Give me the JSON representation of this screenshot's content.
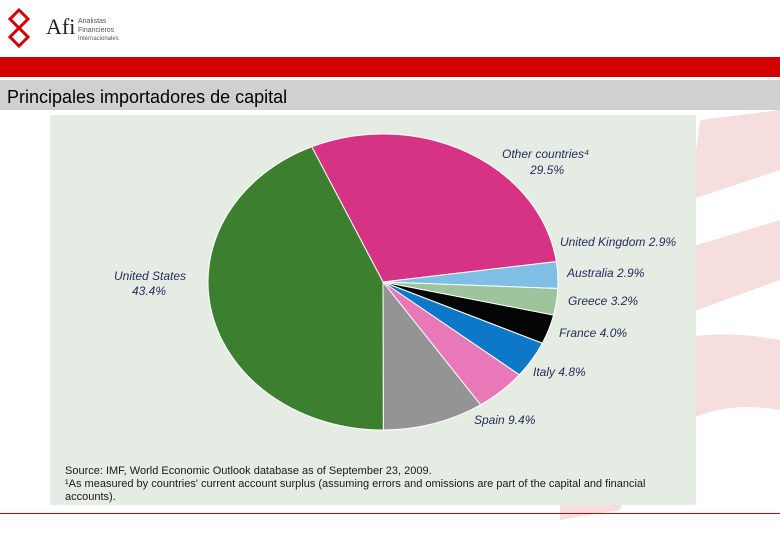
{
  "header": {
    "logo_text": "Afi",
    "logo_sub_1": "Analistas",
    "logo_sub_2": "Financieros",
    "logo_sub_3": "Internacionales"
  },
  "page": {
    "title": "Principales importadores de capital"
  },
  "colors": {
    "brand_red": "#d40000",
    "panel_bg": "#e4ece4"
  },
  "chart_data": {
    "type": "pie",
    "slices": [
      {
        "label": "Other countries⁴",
        "value": 29.5,
        "display": "29.5%",
        "color": "#d63384"
      },
      {
        "label": "United Kingdom",
        "value": 2.9,
        "display": "2.9%",
        "color": "#7fbfe6"
      },
      {
        "label": "Australia",
        "value": 2.9,
        "display": "2.9%",
        "color": "#9dc49d"
      },
      {
        "label": "Greece",
        "value": 3.2,
        "display": "3.2%",
        "color": "#050505"
      },
      {
        "label": "France",
        "value": 4.0,
        "display": "4.0%",
        "color": "#0e78c8"
      },
      {
        "label": "Italy",
        "value": 4.8,
        "display": "4.8%",
        "color": "#e878b8"
      },
      {
        "label": "Spain",
        "value": 9.4,
        "display": "9.4%",
        "color": "#949494"
      },
      {
        "label": "United States",
        "value": 43.4,
        "display": "43.4%",
        "color": "#3c7f2e"
      }
    ],
    "source": "Source: IMF, World Economic Outlook database as of September 23, 2009.",
    "footnote": "¹As measured by countries' current account surplus (assuming errors and omissions are part of the capital and financial accounts)."
  }
}
